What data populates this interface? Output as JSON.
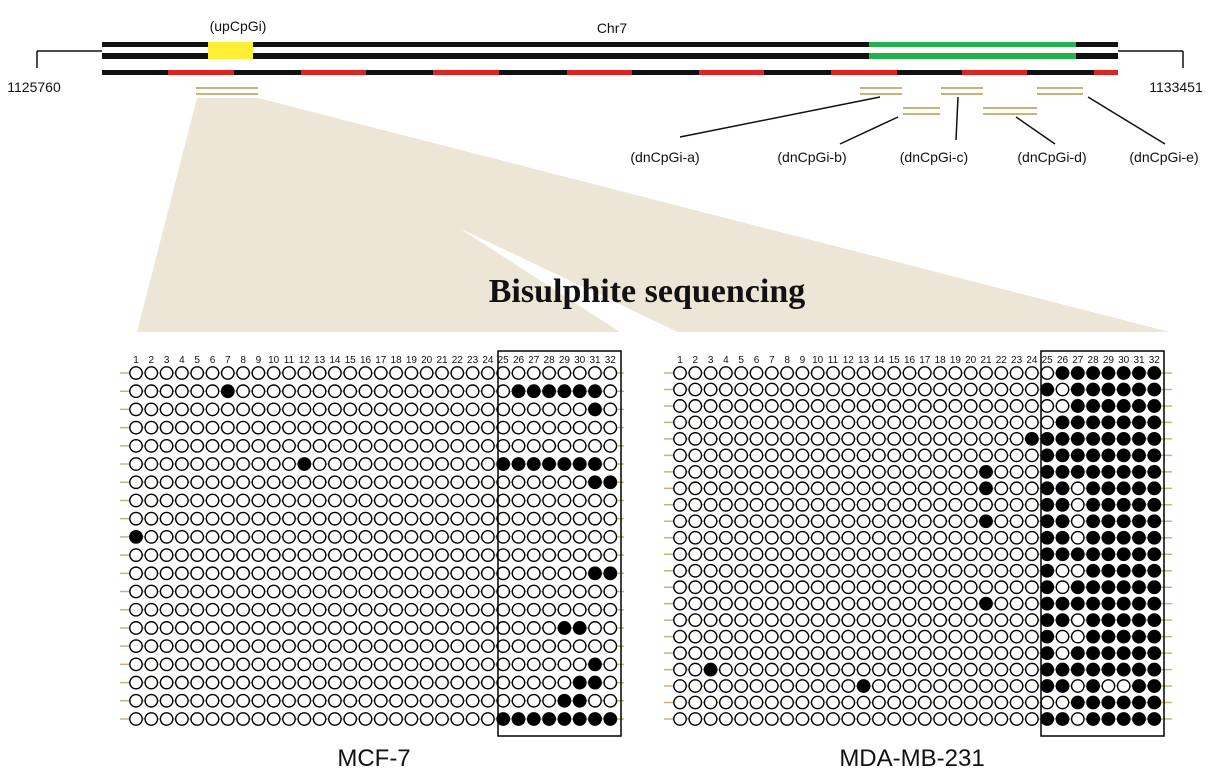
{
  "chromosome": {
    "label": "Chr7",
    "start": "1125760",
    "end": "1133451"
  },
  "regions": {
    "up": "(upCpGi)",
    "dn": [
      "(dnCpGi-a)",
      "(dnCpGi-b)",
      "(dnCpGi-c)",
      "(dnCpGi-d)",
      "(dnCpGi-e)"
    ]
  },
  "colors": {
    "cpg_island": "#ffee33",
    "gene_body": "#22b14c",
    "exon": "#dd2222",
    "amplicon": "#c9b37a",
    "fan": "#ede6d6"
  },
  "title": "Bisulphite sequencing",
  "cpg_sites": [
    "1",
    "2",
    "3",
    "4",
    "5",
    "6",
    "7",
    "8",
    "9",
    "10",
    "11",
    "12",
    "13",
    "14",
    "15",
    "16",
    "17",
    "18",
    "19",
    "20",
    "21",
    "22",
    "23",
    "24",
    "25",
    "26",
    "27",
    "28",
    "29",
    "30",
    "31",
    "32"
  ],
  "boxed_sites": [
    25,
    32
  ],
  "panels": [
    {
      "label": "MCF-7",
      "methylated": [
        [],
        [
          7,
          26,
          27,
          28,
          29,
          30,
          31
        ],
        [
          31
        ],
        [],
        [],
        [
          12,
          25,
          26,
          27,
          28,
          29,
          30,
          31
        ],
        [
          31,
          32
        ],
        [],
        [],
        [
          1
        ],
        [],
        [
          31,
          32
        ],
        [],
        [],
        [
          29,
          30
        ],
        [],
        [
          31
        ],
        [
          30,
          31
        ],
        [
          29,
          30
        ],
        [
          25,
          26,
          27,
          28,
          29,
          30,
          31,
          32
        ]
      ]
    },
    {
      "label": "MDA-MB-231",
      "methylated": [
        [
          26,
          27,
          28,
          29,
          30,
          31,
          32
        ],
        [
          25,
          27,
          28,
          29,
          30,
          31,
          32
        ],
        [
          27,
          28,
          29,
          30,
          31,
          32
        ],
        [
          26,
          27,
          28,
          29,
          30,
          31,
          32
        ],
        [
          24,
          25,
          26,
          27,
          28,
          29,
          30,
          31,
          32
        ],
        [
          25,
          26,
          27,
          28,
          29,
          30,
          31,
          32
        ],
        [
          21,
          25,
          26,
          27,
          28,
          29,
          30,
          31,
          32
        ],
        [
          21,
          25,
          26,
          28,
          29,
          30,
          31,
          32
        ],
        [
          25,
          26,
          28,
          29,
          30,
          31,
          32
        ],
        [
          21,
          25,
          26,
          28,
          29,
          30,
          31,
          32
        ],
        [
          25,
          26,
          28,
          29,
          30,
          31,
          32
        ],
        [
          25,
          26,
          27,
          28,
          29,
          30,
          31,
          32
        ],
        [
          25,
          28,
          29,
          30,
          31,
          32
        ],
        [
          25,
          27,
          28,
          29,
          30,
          31,
          32
        ],
        [
          21,
          25,
          26,
          27,
          28,
          29,
          30,
          31,
          32
        ],
        [
          25,
          26,
          28,
          29,
          30,
          31,
          32
        ],
        [
          25,
          28,
          29,
          30,
          31,
          32
        ],
        [
          25,
          27,
          28,
          29,
          30,
          31,
          32
        ],
        [
          3,
          25,
          26,
          27,
          28,
          29,
          30,
          31,
          32
        ],
        [
          13,
          25,
          26,
          28,
          31,
          32
        ],
        [
          27,
          28,
          29,
          30,
          31,
          32
        ],
        [
          25,
          26,
          28,
          29,
          30,
          31,
          32
        ]
      ]
    }
  ]
}
